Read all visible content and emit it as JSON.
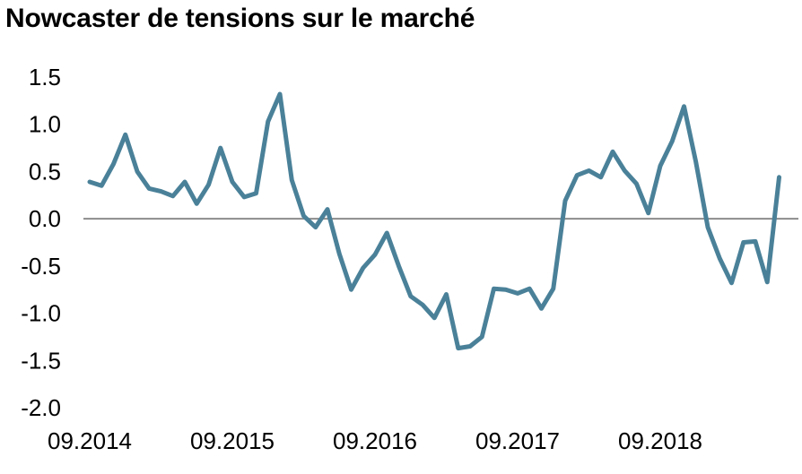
{
  "colors": {
    "series": "#4a8199",
    "zero_line": "#8c8c8c",
    "text": "#000000"
  },
  "chart_data": {
    "type": "line",
    "title": "Nowcaster de tensions sur le marché",
    "xlabel": "",
    "ylabel": "",
    "ylim": [
      -2.0,
      1.5
    ],
    "yticks": [
      "1.5",
      "1.0",
      "0.5",
      "0.0",
      "-0.5",
      "-1.0",
      "-1.5",
      "-2.0"
    ],
    "ytick_values": [
      1.5,
      1.0,
      0.5,
      0.0,
      -0.5,
      -1.0,
      -1.5,
      -2.0
    ],
    "xticks": [
      "09.2014",
      "09.2015",
      "09.2016",
      "09.2017",
      "09.2018"
    ],
    "xtick_months": [
      0,
      12,
      24,
      36,
      48
    ],
    "x_range_months": [
      -1,
      58
    ],
    "grid": false,
    "legend": "none",
    "zero_line": true,
    "series": [
      {
        "values": [
          0.39,
          0.35,
          0.58,
          0.89,
          0.5,
          0.32,
          0.29,
          0.24,
          0.39,
          0.16,
          0.36,
          0.75,
          0.39,
          0.23,
          0.27,
          1.03,
          1.32,
          0.41,
          0.03,
          -0.09,
          0.1,
          -0.37,
          -0.75,
          -0.52,
          -0.38,
          -0.15,
          -0.5,
          -0.82,
          -0.91,
          -1.05,
          -0.8,
          -1.37,
          -1.35,
          -1.25,
          -0.74,
          -0.75,
          -0.79,
          -0.74,
          -0.95,
          -0.74,
          0.19,
          0.46,
          0.51,
          0.44,
          0.71,
          0.51,
          0.37,
          0.06,
          0.56,
          0.82,
          1.19,
          0.6,
          -0.09,
          -0.42,
          -0.68,
          -0.25,
          -0.24,
          -0.67,
          0.44
        ]
      }
    ]
  }
}
